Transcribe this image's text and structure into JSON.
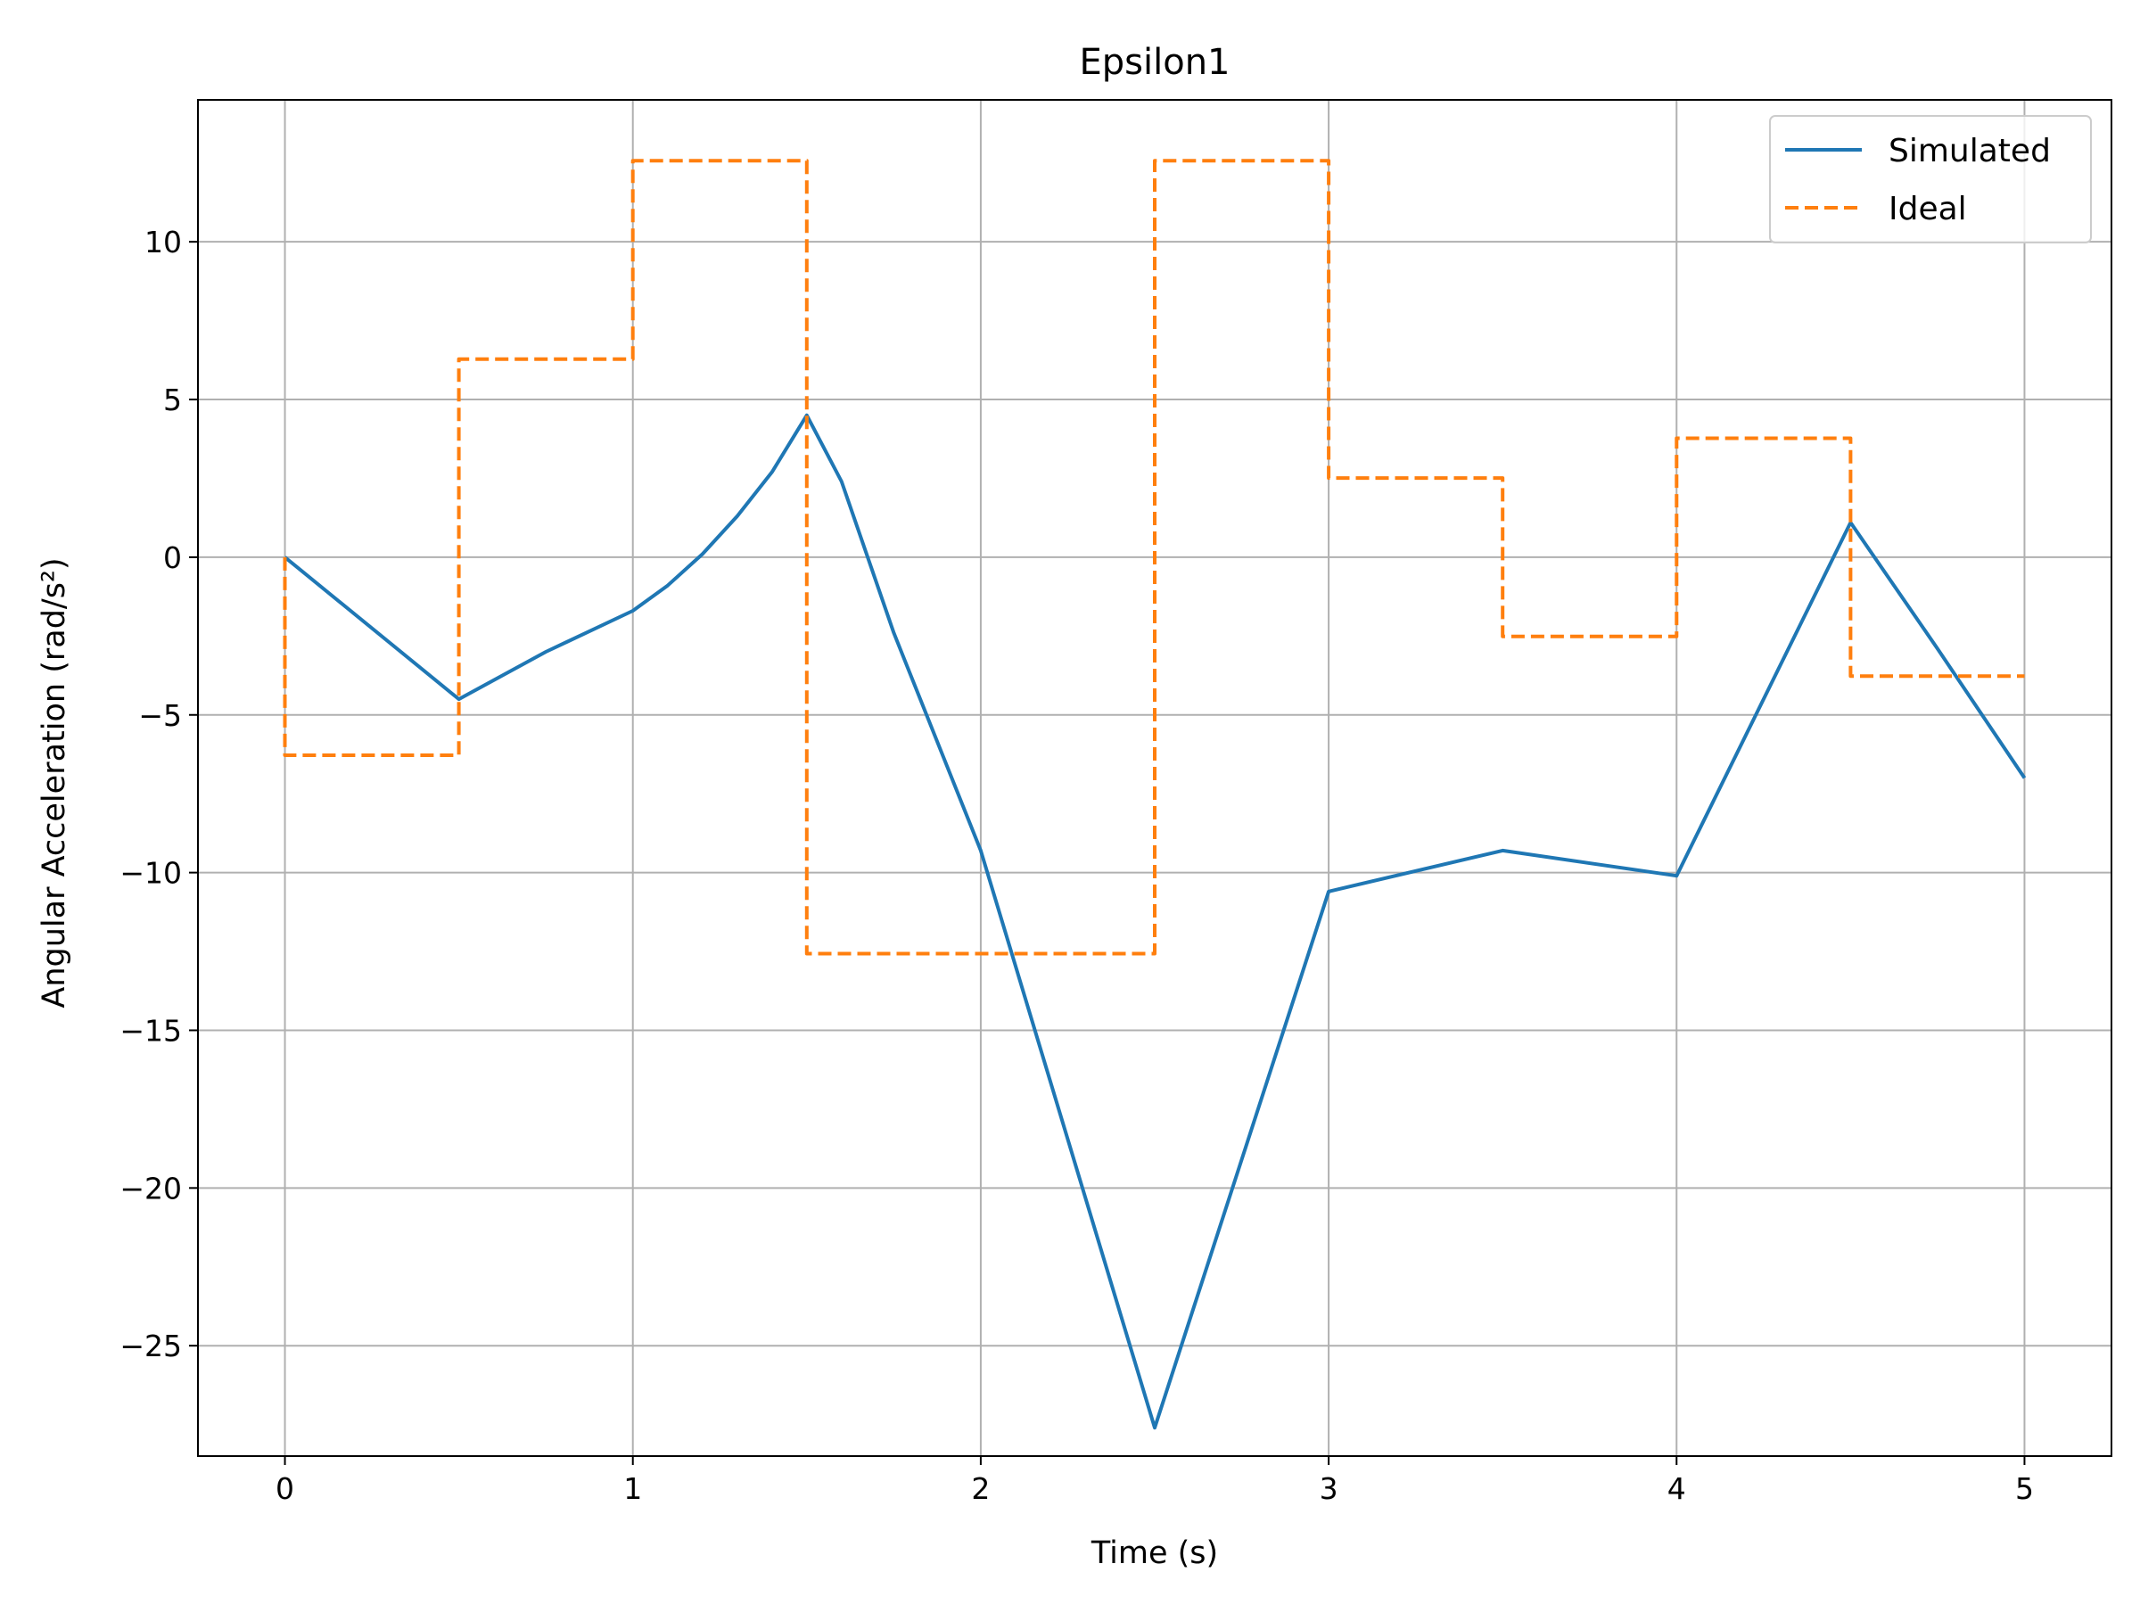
{
  "chart_data": {
    "type": "line",
    "title": "Epsilon1",
    "xlabel": "Time (s)",
    "ylabel": "Angular Acceleration (rad/s²)",
    "xlim": [
      -0.25,
      5.25
    ],
    "ylim": [
      -28.5,
      14.5
    ],
    "xticks": [
      0,
      1,
      2,
      3,
      4,
      5
    ],
    "xtick_labels": [
      "0",
      "1",
      "2",
      "3",
      "4",
      "5"
    ],
    "yticks": [
      -25,
      -20,
      -15,
      -10,
      -5,
      0,
      5,
      10
    ],
    "ytick_labels": [
      "−25",
      "−20",
      "−15",
      "−10",
      "−5",
      "0",
      "5",
      "10"
    ],
    "grid": true,
    "legend_position": "top-right",
    "series": [
      {
        "name": "Simulated",
        "color": "#1f77b4",
        "style": "solid",
        "x": [
          0,
          0.5,
          0.75,
          1.0,
          1.1,
          1.2,
          1.3,
          1.4,
          1.5,
          1.6,
          1.75,
          2.0,
          2.5,
          3.0,
          3.5,
          4.0,
          4.5,
          4.75,
          5.0
        ],
        "y": [
          0.0,
          -4.5,
          -3.0,
          -1.7,
          -0.9,
          0.1,
          1.3,
          2.7,
          4.5,
          2.4,
          -2.4,
          -9.3,
          -27.6,
          -10.6,
          -9.3,
          -10.1,
          1.1,
          -2.9,
          -7.0
        ]
      },
      {
        "name": "Ideal",
        "color": "#ff7f0e",
        "style": "dashed",
        "x": [
          0,
          0,
          0.5,
          0.5,
          1.0,
          1.0,
          1.5,
          1.5,
          2.5,
          2.5,
          3.0,
          3.0,
          3.5,
          3.5,
          4.0,
          4.0,
          4.5,
          4.5,
          5.0
        ],
        "y": [
          0,
          -6.28,
          -6.28,
          6.28,
          6.28,
          12.57,
          12.57,
          -12.57,
          -12.57,
          12.57,
          12.57,
          2.51,
          2.51,
          -2.51,
          -2.51,
          3.77,
          3.77,
          -3.77,
          -3.77
        ]
      }
    ]
  }
}
